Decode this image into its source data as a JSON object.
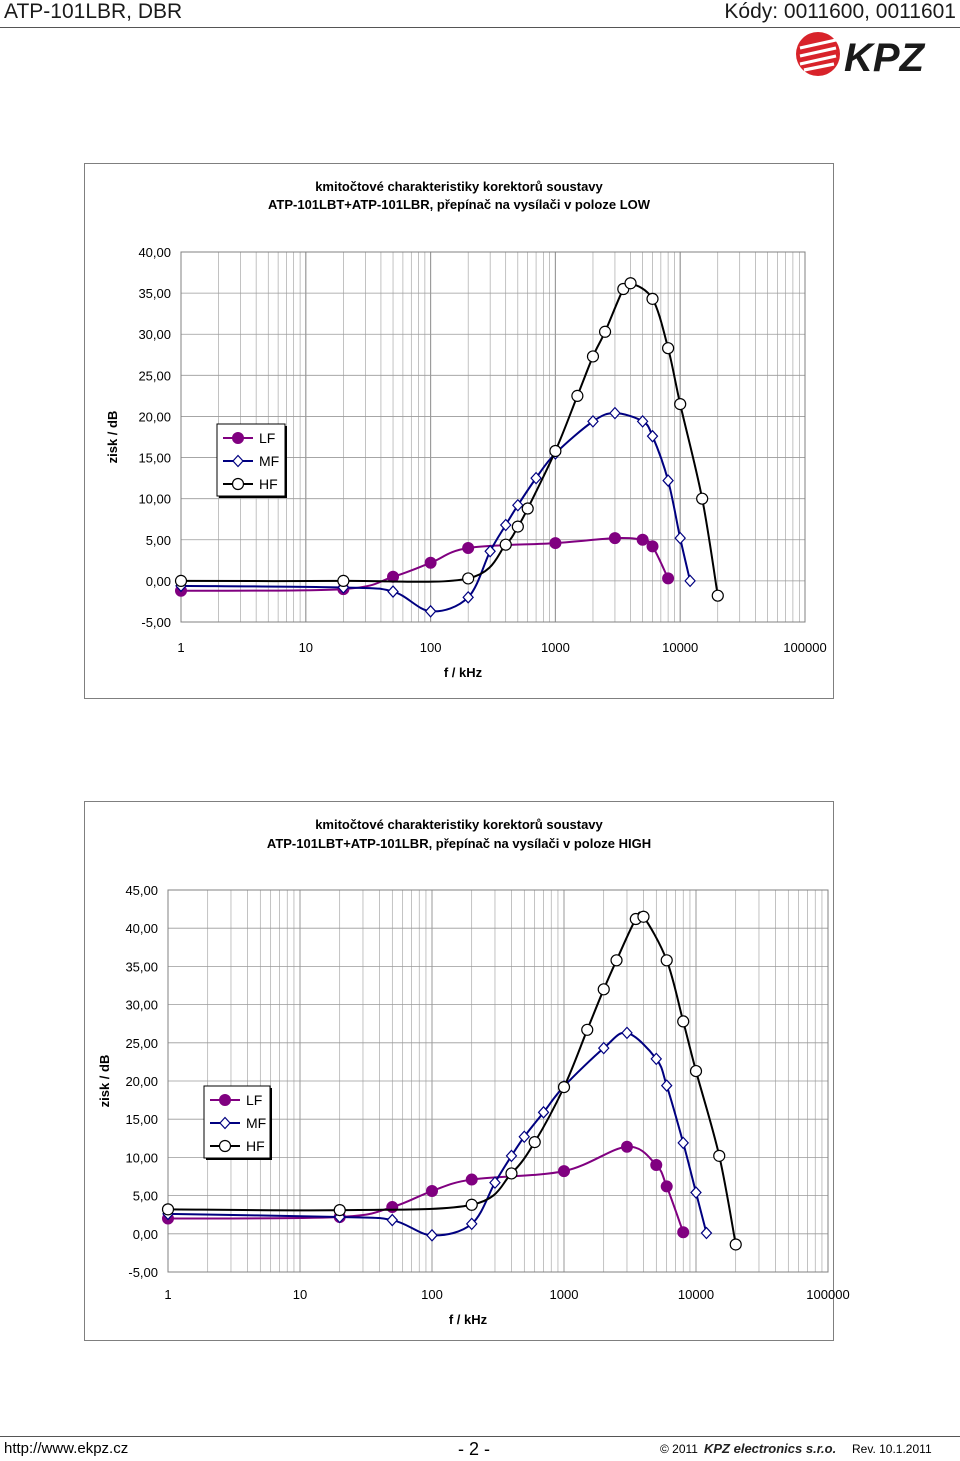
{
  "header": {
    "title": "ATP-101LBR, DBR",
    "codes": "Kódy: 0011600, 0011601",
    "logo_text": "KPZ"
  },
  "colors": {
    "LF": "#800080",
    "MF": "#000080",
    "HF": "#000000",
    "grid": "#9a9a9a",
    "logo_red": "#d8232a"
  },
  "chart_data": [
    {
      "type": "line",
      "title_line1": "kmitočtové charakteristiky korektorů soustavy",
      "title_line2": "ATP-101LBT+ATP-101LBR, přepínač na vysílači v poloze LOW",
      "xlabel": "f / kHz",
      "ylabel": "zisk / dB",
      "xscale": "log",
      "xlim": [
        1,
        100000
      ],
      "ylim": [
        -5,
        40
      ],
      "ystep": 5,
      "x_tick_labels": [
        "1",
        "10",
        "100",
        "1000",
        "10000",
        "100000"
      ],
      "y_tick_labels": [
        "-5,00",
        "0,00",
        "5,00",
        "10,00",
        "15,00",
        "20,00",
        "25,00",
        "30,00",
        "35,00",
        "40,00"
      ],
      "grid": true,
      "legend": "left",
      "series": [
        {
          "name": "LF",
          "marker": "circle-filled",
          "x": [
            1,
            20,
            50,
            100,
            200,
            1000,
            3000,
            5000,
            6000,
            8000
          ],
          "y": [
            -1.2,
            -1.0,
            0.5,
            2.2,
            4.0,
            4.6,
            5.2,
            5.0,
            4.2,
            0.3
          ]
        },
        {
          "name": "MF",
          "marker": "diamond",
          "x": [
            1,
            20,
            50,
            100,
            200,
            300,
            400,
            500,
            700,
            1000,
            2000,
            3000,
            5000,
            6000,
            8000,
            10000,
            12000
          ],
          "y": [
            -0.6,
            -0.8,
            -1.3,
            -3.7,
            -2.0,
            3.6,
            6.8,
            9.2,
            12.5,
            15.5,
            19.4,
            20.4,
            19.4,
            17.6,
            12.2,
            5.2,
            0.0
          ]
        },
        {
          "name": "HF",
          "marker": "circle-open",
          "x": [
            1,
            20,
            200,
            400,
            500,
            600,
            1000,
            1500,
            2000,
            2500,
            3500,
            4000,
            6000,
            8000,
            10000,
            15000,
            20000
          ],
          "y": [
            0.0,
            0.0,
            0.3,
            4.4,
            6.6,
            8.8,
            15.8,
            22.5,
            27.3,
            30.3,
            35.5,
            36.2,
            34.3,
            28.3,
            21.5,
            10.0,
            -1.8
          ]
        }
      ]
    },
    {
      "type": "line",
      "title_line1": "kmitočtové charakteristiky korektorů soustavy",
      "title_line2": "ATP-101LBT+ATP-101LBR, přepínač na vysílači v poloze HIGH",
      "xlabel": "f / kHz",
      "ylabel": "zisk / dB",
      "xscale": "log",
      "xlim": [
        1,
        100000
      ],
      "ylim": [
        -5,
        45
      ],
      "ystep": 5,
      "x_tick_labels": [
        "1",
        "10",
        "100",
        "1000",
        "10000",
        "100000"
      ],
      "y_tick_labels": [
        "-5,00",
        "0,00",
        "5,00",
        "10,00",
        "15,00",
        "20,00",
        "25,00",
        "30,00",
        "35,00",
        "40,00",
        "45,00"
      ],
      "grid": true,
      "legend": "left",
      "series": [
        {
          "name": "LF",
          "marker": "circle-filled",
          "x": [
            1,
            20,
            50,
            100,
            200,
            1000,
            3000,
            5000,
            6000,
            8000
          ],
          "y": [
            2.0,
            2.2,
            3.5,
            5.6,
            7.1,
            8.2,
            11.4,
            9.0,
            6.2,
            0.2
          ]
        },
        {
          "name": "MF",
          "marker": "diamond",
          "x": [
            1,
            20,
            50,
            100,
            200,
            300,
            400,
            500,
            700,
            1000,
            2000,
            3000,
            5000,
            6000,
            8000,
            10000,
            12000
          ],
          "y": [
            2.6,
            2.2,
            1.8,
            -0.2,
            1.3,
            6.7,
            10.2,
            12.7,
            15.9,
            19.3,
            24.3,
            26.3,
            22.9,
            19.4,
            11.9,
            5.4,
            0.1
          ]
        },
        {
          "name": "HF",
          "marker": "circle-open",
          "x": [
            1,
            20,
            200,
            400,
            600,
            1000,
            1500,
            2000,
            2500,
            3500,
            4000,
            6000,
            8000,
            10000,
            15000,
            20000
          ],
          "y": [
            3.2,
            3.1,
            3.8,
            7.9,
            12.0,
            19.2,
            26.7,
            32.0,
            35.8,
            41.2,
            41.5,
            35.8,
            27.8,
            21.3,
            10.2,
            -1.4
          ]
        }
      ]
    }
  ],
  "footer": {
    "url": "http://www.ekpz.cz",
    "page": "- 2 -",
    "copyright": "© 2011",
    "logo_text": "KPZ electronics s.r.o.",
    "revision": "Rev. 10.1.2011"
  }
}
